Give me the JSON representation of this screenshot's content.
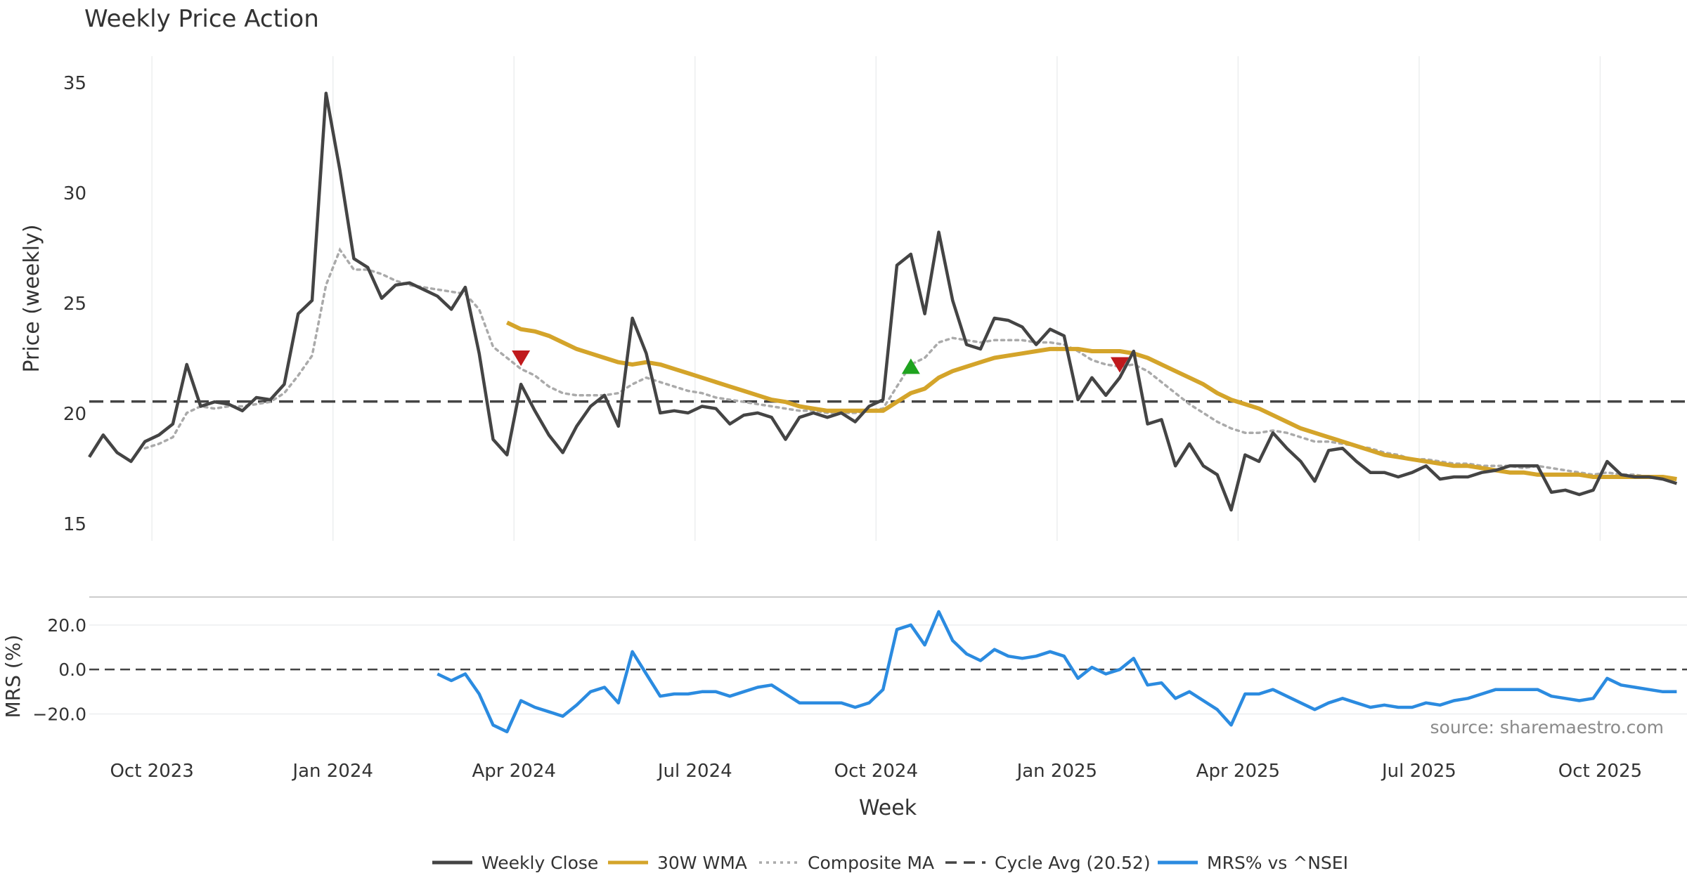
{
  "chart_data": [
    {
      "type": "line",
      "title": "Weekly Price Action",
      "xlabel": "",
      "ylabel": "Price (weekly)",
      "ylim": [
        14.2,
        36.5
      ],
      "yticks": [
        15,
        20,
        25,
        30,
        35
      ],
      "grid": "vertical",
      "x_ticks": [
        "Oct 2023",
        "Jan 2024",
        "Apr 2024",
        "Jul 2024",
        "Oct 2024",
        "Jan 2025",
        "Apr 2025",
        "Jul 2025",
        "Oct 2025"
      ],
      "series": [
        {
          "name": "Weekly Close",
          "color": "#444444",
          "values": [
            18.0,
            19.0,
            18.2,
            17.8,
            18.7,
            19.0,
            19.5,
            22.2,
            20.3,
            20.5,
            20.4,
            20.1,
            20.7,
            20.6,
            21.3,
            24.5,
            25.1,
            34.5,
            31.0,
            27.0,
            26.6,
            25.2,
            25.8,
            25.9,
            25.6,
            25.3,
            24.7,
            25.7,
            22.7,
            18.8,
            18.1,
            21.3,
            20.1,
            19.0,
            18.2,
            19.4,
            20.3,
            20.8,
            19.4,
            24.3,
            22.7,
            20.0,
            20.1,
            20.0,
            20.3,
            20.2,
            19.5,
            19.9,
            20.0,
            19.8,
            18.8,
            19.8,
            20.0,
            19.8,
            20.0,
            19.6,
            20.3,
            20.6,
            26.7,
            27.2,
            24.5,
            28.2,
            25.1,
            23.1,
            22.9,
            24.3,
            24.2,
            23.9,
            23.1,
            23.8,
            23.5,
            20.6,
            21.6,
            20.8,
            21.6,
            22.8,
            19.5,
            19.7,
            17.6,
            18.6,
            17.6,
            17.2,
            15.6,
            18.1,
            17.8,
            19.1,
            18.4,
            17.8,
            16.9,
            18.3,
            18.4,
            17.8,
            17.3,
            17.3,
            17.1,
            17.3,
            17.6,
            17.0,
            17.1,
            17.1,
            17.3,
            17.4,
            17.6,
            17.6,
            17.6,
            16.4,
            16.5,
            16.3,
            16.5,
            17.8,
            17.2,
            17.1,
            17.1,
            17.0,
            16.8
          ]
        },
        {
          "name": "30W WMA",
          "color": "#d4a42a",
          "values": [
            null,
            null,
            null,
            null,
            null,
            null,
            null,
            null,
            null,
            null,
            null,
            null,
            null,
            null,
            null,
            null,
            null,
            null,
            null,
            null,
            null,
            null,
            null,
            null,
            null,
            null,
            null,
            null,
            null,
            null,
            24.1,
            23.8,
            23.7,
            23.5,
            23.2,
            22.9,
            22.7,
            22.5,
            22.3,
            22.2,
            22.3,
            22.2,
            22.0,
            21.8,
            21.6,
            21.4,
            21.2,
            21.0,
            20.8,
            20.6,
            20.5,
            20.3,
            20.2,
            20.1,
            20.1,
            20.1,
            20.1,
            20.1,
            20.5,
            20.9,
            21.1,
            21.6,
            21.9,
            22.1,
            22.3,
            22.5,
            22.6,
            22.7,
            22.8,
            22.9,
            22.9,
            22.9,
            22.8,
            22.8,
            22.8,
            22.7,
            22.5,
            22.2,
            21.9,
            21.6,
            21.3,
            20.9,
            20.6,
            20.4,
            20.2,
            19.9,
            19.6,
            19.3,
            19.1,
            18.9,
            18.7,
            18.5,
            18.3,
            18.1,
            18.0,
            17.9,
            17.8,
            17.7,
            17.6,
            17.6,
            17.5,
            17.4,
            17.3,
            17.3,
            17.2,
            17.2,
            17.2,
            17.2,
            17.1,
            17.1,
            17.1,
            17.1,
            17.1,
            17.1,
            17.0
          ]
        },
        {
          "name": "Composite MA",
          "color": "#aaaaaa",
          "values": [
            null,
            null,
            null,
            null,
            18.4,
            18.6,
            18.9,
            20.0,
            20.3,
            20.2,
            20.3,
            20.3,
            20.4,
            20.5,
            20.9,
            21.7,
            22.6,
            25.8,
            27.4,
            26.5,
            26.5,
            26.3,
            26.0,
            25.8,
            25.7,
            25.6,
            25.5,
            25.4,
            24.7,
            23.0,
            22.5,
            22.0,
            21.7,
            21.2,
            20.9,
            20.8,
            20.8,
            20.8,
            20.9,
            21.3,
            21.6,
            21.4,
            21.2,
            21.0,
            20.9,
            20.7,
            20.6,
            20.5,
            20.4,
            20.3,
            20.2,
            20.1,
            20.1,
            20.0,
            20.0,
            20.0,
            20.1,
            20.2,
            21.2,
            22.2,
            22.5,
            23.2,
            23.4,
            23.3,
            23.2,
            23.3,
            23.3,
            23.3,
            23.2,
            23.2,
            23.1,
            22.8,
            22.4,
            22.2,
            22.1,
            22.2,
            21.9,
            21.4,
            20.9,
            20.4,
            20.0,
            19.6,
            19.3,
            19.1,
            19.1,
            19.2,
            19.1,
            18.9,
            18.7,
            18.7,
            18.6,
            18.5,
            18.4,
            18.2,
            18.1,
            17.9,
            17.9,
            17.8,
            17.7,
            17.7,
            17.6,
            17.6,
            17.6,
            17.5,
            17.6,
            17.5,
            17.4,
            17.3,
            17.2,
            17.3,
            17.2,
            17.2,
            17.1,
            17.1,
            17.0
          ]
        },
        {
          "name": "Cycle Avg (20.52)",
          "color": "#444444",
          "value": 20.52
        }
      ],
      "markers": [
        {
          "index": 31,
          "value": 22.5,
          "direction": "down",
          "color": "#c0191c"
        },
        {
          "index": 59,
          "value": 22.1,
          "direction": "up",
          "color": "#1fa31f"
        },
        {
          "index": 74,
          "value": 22.2,
          "direction": "down",
          "color": "#c0191c"
        }
      ]
    },
    {
      "type": "line",
      "title": "",
      "xlabel": "Week",
      "ylabel": "MRS (%)",
      "ylim": [
        -29,
        31
      ],
      "yticks": [
        -20.0,
        0.0,
        20.0
      ],
      "ytick_labels": [
        "−20.0",
        "0.0",
        "20.0"
      ],
      "series": [
        {
          "name": "MRS% vs ^NSEI",
          "color": "#2b8be0",
          "values": [
            null,
            null,
            null,
            null,
            null,
            null,
            null,
            null,
            null,
            null,
            null,
            null,
            null,
            null,
            null,
            null,
            null,
            null,
            null,
            null,
            null,
            null,
            null,
            null,
            null,
            -2,
            -5,
            -2,
            -11,
            -25,
            -28,
            -14,
            -17,
            -19,
            -21,
            -16,
            -10,
            -8,
            -15,
            8,
            -2,
            -12,
            -11,
            -11,
            -10,
            -10,
            -12,
            -10,
            -8,
            -7,
            -11,
            -15,
            -15,
            -15,
            -15,
            -17,
            -15,
            -9,
            18,
            20,
            11,
            26,
            13,
            7,
            4,
            9,
            6,
            5,
            6,
            8,
            6,
            -4,
            1,
            -2,
            0,
            5,
            -7,
            -6,
            -13,
            -10,
            -14,
            -18,
            -25,
            -11,
            -11,
            -9,
            -12,
            -15,
            -18,
            -15,
            -13,
            -15,
            -17,
            -16,
            -17,
            -17,
            -15,
            -16,
            -14,
            -13,
            -11,
            -9,
            -9,
            -9,
            -9,
            -12,
            -13,
            -14,
            -13,
            -4,
            -7,
            -8,
            -9,
            -10,
            -10
          ]
        },
        {
          "name": "zero-line",
          "color": "#444444",
          "value": 0
        }
      ],
      "annotation": "source: sharemaestro.com"
    }
  ],
  "legend": {
    "placement": "bottom-center",
    "items": [
      {
        "label": "Weekly Close",
        "color": "#444444",
        "style": "solid"
      },
      {
        "label": "30W WMA",
        "color": "#d4a42a",
        "style": "solid"
      },
      {
        "label": "Composite MA",
        "color": "#aaaaaa",
        "style": "dotted"
      },
      {
        "label": "Cycle Avg (20.52)",
        "color": "#444444",
        "style": "dashed"
      },
      {
        "label": "MRS% vs ^NSEI",
        "color": "#2b8be0",
        "style": "solid"
      }
    ]
  }
}
